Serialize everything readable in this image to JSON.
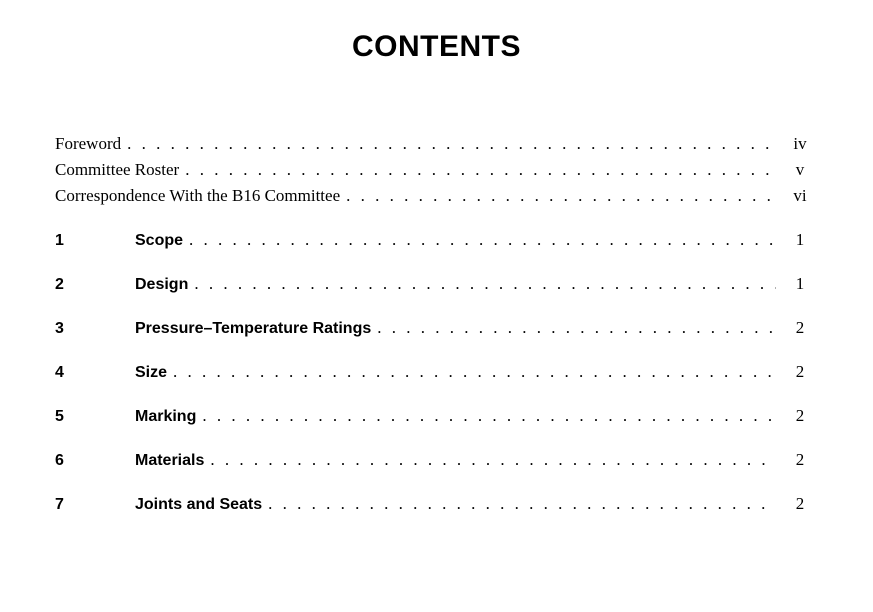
{
  "title": "CONTENTS",
  "front": [
    {
      "label": "Foreword",
      "page": "iv"
    },
    {
      "label": "Committee Roster",
      "page": "v"
    },
    {
      "label": "Correspondence With the B16 Committee",
      "page": "vi"
    }
  ],
  "sections": [
    {
      "num": "1",
      "label": "Scope",
      "page": "1"
    },
    {
      "num": "2",
      "label": "Design",
      "page": "1"
    },
    {
      "num": "3",
      "label": "Pressure–Temperature Ratings",
      "page": "2"
    },
    {
      "num": "4",
      "label": "Size",
      "page": "2"
    },
    {
      "num": "5",
      "label": "Marking",
      "page": "2"
    },
    {
      "num": "6",
      "label": "Materials",
      "page": "2"
    },
    {
      "num": "7",
      "label": "Joints and Seats",
      "page": "2"
    }
  ]
}
